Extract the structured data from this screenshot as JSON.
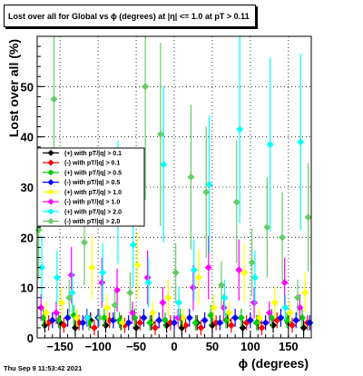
{
  "title": "Lost over all for Global vs ϕ (degrees) at |η| <= 1.0 at pT > 0.11",
  "footer": "Thu Sep  9 11:53:42 2021",
  "chart_data": {
    "type": "scatter",
    "xlabel": "ϕ (degrees)",
    "ylabel": "Lost over all (%)",
    "xlim": [
      -180,
      180
    ],
    "ylim": [
      0,
      60
    ],
    "xticks": [
      -150,
      -100,
      -50,
      0,
      50,
      100,
      150
    ],
    "yticks": [
      0,
      10,
      20,
      30,
      40,
      50
    ],
    "grid": true,
    "legend_position": "mid-left",
    "series": [
      {
        "name": "(+) with pT/|q| > 0.1",
        "color": "#000000",
        "marker": "diamond",
        "x": [
          -170,
          -150,
          -130,
          -110,
          -90,
          -70,
          -50,
          -30,
          -10,
          10,
          30,
          50,
          70,
          90,
          110,
          130,
          150,
          170
        ],
        "y": [
          2.5,
          3,
          2,
          3.5,
          2.5,
          3,
          2,
          3,
          2.5,
          2,
          3,
          2.5,
          3.5,
          2,
          3,
          2.5,
          3,
          2
        ]
      },
      {
        "name": "(-) with pT/|q| > 0.1",
        "color": "#ff0000",
        "marker": "diamond",
        "x": [
          -165,
          -145,
          -125,
          -105,
          -85,
          -65,
          -45,
          -25,
          -5,
          15,
          35,
          55,
          75,
          95,
          115,
          135,
          155,
          175
        ],
        "y": [
          3,
          2.5,
          3,
          2,
          3.5,
          2.5,
          3,
          2,
          3,
          2.5,
          2,
          3,
          2.5,
          3,
          2,
          3.5,
          2.5,
          3
        ]
      },
      {
        "name": "(+) with pT/|q| > 0.5",
        "color": "#00cc00",
        "marker": "diamond",
        "x": [
          -172,
          -152,
          -132,
          -112,
          -92,
          -72,
          -52,
          -32,
          -12,
          8,
          28,
          48,
          68,
          88,
          108,
          128,
          148,
          168
        ],
        "y": [
          4,
          3.5,
          4.5,
          3,
          4,
          3.5,
          4,
          3,
          3.5,
          4,
          3,
          4.5,
          3.5,
          4,
          3,
          4,
          3.5,
          4
        ]
      },
      {
        "name": "(-) with pT/|q| > 0.5",
        "color": "#0000ff",
        "marker": "diamond",
        "x": [
          -160,
          -140,
          -120,
          -100,
          -80,
          -60,
          -40,
          -20,
          0,
          20,
          40,
          60,
          80,
          100,
          120,
          140,
          160,
          178
        ],
        "y": [
          3.5,
          4,
          3,
          4,
          3.5,
          3,
          4,
          3.5,
          3,
          4,
          3.5,
          3,
          4,
          3.5,
          3,
          4,
          3.5,
          3
        ]
      },
      {
        "name": "(+) with pT/|q| > 1.0",
        "color": "#ffff00",
        "marker": "diamond",
        "x": [
          -168,
          -148,
          -128,
          -108,
          -88,
          -68,
          -48,
          -28,
          -8,
          12,
          32,
          52,
          72,
          92,
          112,
          132,
          152,
          172
        ],
        "y": [
          5,
          7,
          4,
          14,
          6,
          3,
          14.5,
          5,
          8,
          4,
          12,
          6,
          5,
          13,
          4,
          7,
          5,
          9
        ]
      },
      {
        "name": "(-) with pT/|q| > 1.0",
        "color": "#ff00ff",
        "marker": "diamond",
        "x": [
          -175,
          -155,
          -135,
          -115,
          -95,
          -75,
          -55,
          -35,
          -15,
          5,
          25,
          45,
          65,
          85,
          105,
          125,
          145,
          165
        ],
        "y": [
          6,
          5,
          12.5,
          4,
          11,
          9.5,
          5,
          12,
          7,
          4,
          10,
          14,
          6,
          13.5,
          7,
          5,
          11,
          6
        ]
      },
      {
        "name": "(+) with pT/|q| > 2.0",
        "color": "#00ffff",
        "marker": "diamond",
        "x": [
          -174,
          -154,
          -134,
          -114,
          -94,
          -74,
          -54,
          -34,
          -14,
          6,
          26,
          46,
          66,
          86,
          106,
          126,
          146,
          166
        ],
        "y": [
          14,
          12,
          9,
          4,
          13,
          27,
          18.5,
          11,
          34.5,
          7,
          13.5,
          30.5,
          8,
          41.5,
          12,
          38.5,
          6,
          39
        ]
      },
      {
        "name": "(-) with pT/|q| > 2.0",
        "color": "#66cc66",
        "marker": "diamond",
        "x": [
          -178,
          -158,
          -138,
          -118,
          -98,
          -78,
          -58,
          -38,
          -18,
          2,
          22,
          42,
          62,
          82,
          102,
          122,
          142,
          162,
          176
        ],
        "y": [
          21.5,
          47.5,
          8,
          19,
          4,
          6.5,
          9,
          50,
          40.5,
          13,
          32,
          29,
          10.5,
          27,
          15,
          22,
          20,
          8,
          24
        ]
      }
    ]
  }
}
